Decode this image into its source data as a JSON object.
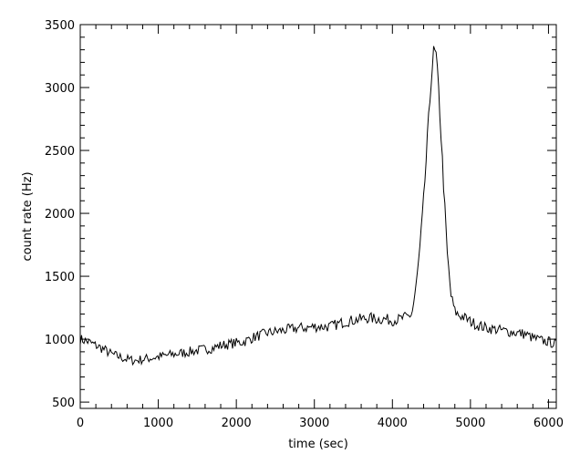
{
  "chart_data": {
    "type": "line",
    "title": "",
    "xlabel": "time (sec)",
    "ylabel": "count rate (Hz)",
    "xlim": [
      0,
      6100
    ],
    "ylim": [
      450,
      3500
    ],
    "x_ticks": [
      0,
      1000,
      2000,
      3000,
      4000,
      5000,
      6000
    ],
    "y_ticks": [
      500,
      1000,
      1500,
      2000,
      2500,
      3000,
      3500
    ],
    "grid": false,
    "legend": "none",
    "line_color": "#000000",
    "series": [
      {
        "x": [
          0,
          100,
          200,
          300,
          400,
          500,
          600,
          700,
          800,
          900,
          1000,
          1100,
          1200,
          1300,
          1400,
          1500,
          1600,
          1700,
          1800,
          1900,
          2000,
          2100,
          2200,
          2300,
          2400,
          2500,
          2600,
          2700,
          2800,
          2900,
          3000,
          3100,
          3200,
          3300,
          3400,
          3500,
          3600,
          3700,
          3800,
          3900,
          4000,
          4100,
          4200,
          4250,
          4300,
          4350,
          4400,
          4450,
          4500,
          4530,
          4560,
          4600,
          4650,
          4700,
          4750,
          4800,
          4850,
          4900,
          5000,
          5100,
          5200,
          5300,
          5400,
          5500,
          5600,
          5700,
          5800,
          5900,
          6000,
          6100
        ],
        "y": [
          1000,
          980,
          950,
          920,
          880,
          860,
          840,
          830,
          840,
          850,
          860,
          870,
          880,
          890,
          900,
          910,
          920,
          930,
          950,
          960,
          970,
          980,
          1010,
          1030,
          1050,
          1060,
          1070,
          1080,
          1090,
          1090,
          1100,
          1100,
          1100,
          1120,
          1140,
          1150,
          1160,
          1170,
          1160,
          1160,
          1150,
          1160,
          1180,
          1200,
          1400,
          1700,
          2100,
          2600,
          3100,
          3290,
          3250,
          2900,
          2300,
          1700,
          1350,
          1220,
          1190,
          1180,
          1140,
          1110,
          1090,
          1080,
          1070,
          1060,
          1050,
          1040,
          1010,
          990,
          980,
          960
        ]
      }
    ]
  }
}
